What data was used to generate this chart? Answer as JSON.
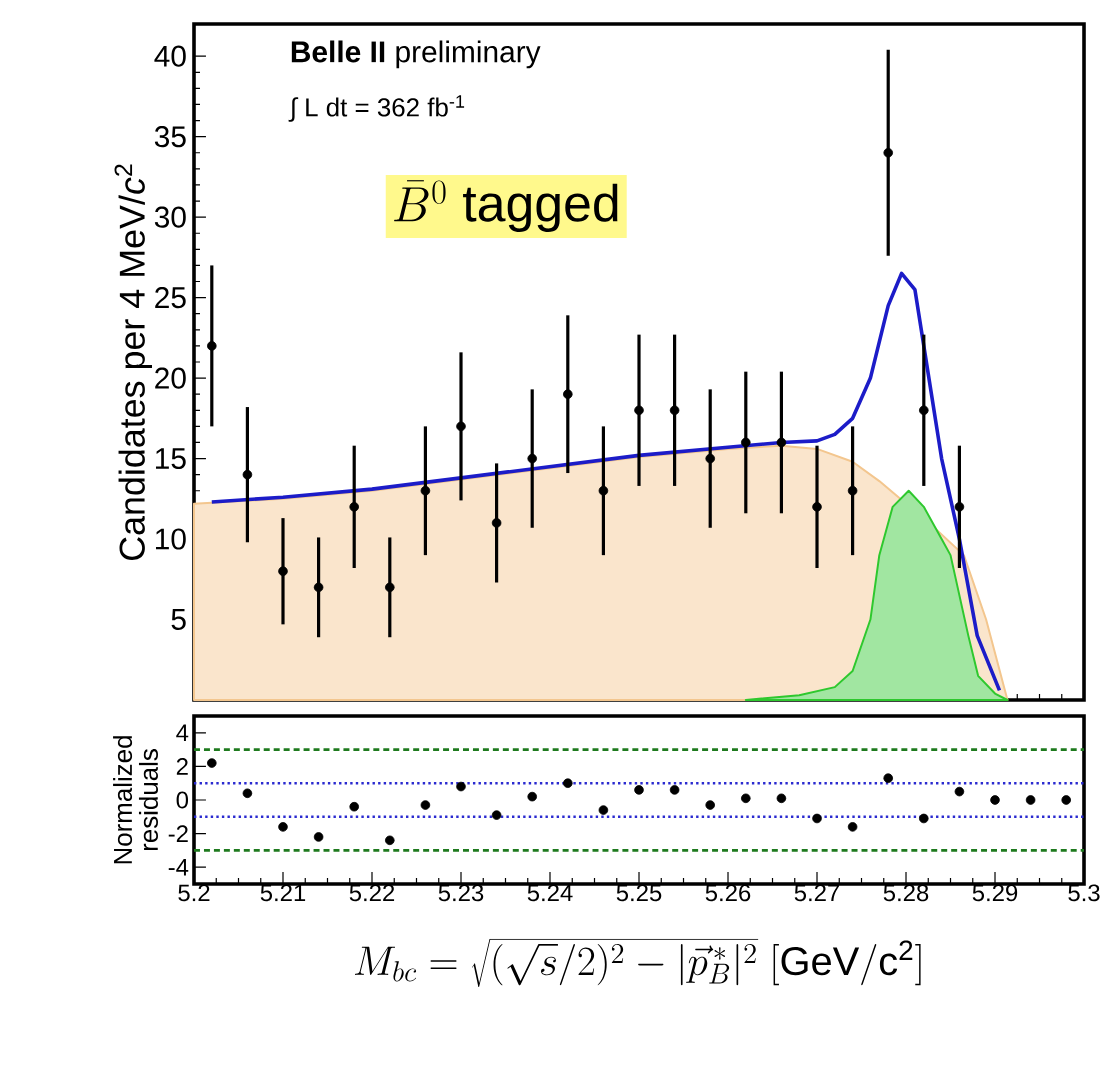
{
  "chart_data": [
    {
      "type": "line",
      "ylabel": "Candidates per 4 MeV/*c*$^{2}$",
      "xlim": [
        5.2,
        5.3
      ],
      "xticks": [
        5.2,
        5.21,
        5.22,
        5.23,
        5.24,
        5.25,
        5.26,
        5.27,
        5.28,
        5.29,
        5.3
      ],
      "ylim": [
        0,
        42
      ],
      "yticks": [
        5,
        10,
        15,
        20,
        25,
        30,
        35,
        40
      ],
      "tick_labels": "y",
      "annotations": [
        "**Belle II** preliminary",
        "∫ L dt = 362 fb$^{-1}$",
        "\\bar{B}^{0}\\ \\mathrm{tagged}"
      ],
      "series": [
        {
          "type": "area",
          "color": "#f3c68e",
          "x": [
            5.2,
            5.21,
            5.22,
            5.23,
            5.24,
            5.25,
            5.26,
            5.266,
            5.27,
            5.274,
            5.277,
            5.283,
            5.2865,
            5.289,
            5.2914
          ],
          "values": [
            12.2,
            12.5,
            13.0,
            13.7,
            14.4,
            15.1,
            15.6,
            15.8,
            15.6,
            14.8,
            13.6,
            10.8,
            9.0,
            5.0,
            0
          ]
        },
        {
          "type": "area",
          "color": "#2ec82e",
          "x": [
            5.262,
            5.268,
            5.272,
            5.274,
            5.276,
            5.277,
            5.2785,
            5.2803,
            5.282,
            5.284,
            5.285,
            5.287,
            5.2881,
            5.29,
            5.2914
          ],
          "values": [
            0,
            0.3,
            0.8,
            1.8,
            5.0,
            9.0,
            12.0,
            13.0,
            12.0,
            10.0,
            9.0,
            4.0,
            1.5,
            0.4,
            0
          ]
        },
        {
          "type": "line",
          "color": "#1c1cc8",
          "x": [
            5.202,
            5.21,
            5.22,
            5.23,
            5.24,
            5.25,
            5.26,
            5.266,
            5.27,
            5.272,
            5.274,
            5.276,
            5.278,
            5.2795,
            5.281,
            5.282,
            5.284,
            5.286,
            5.288,
            5.2905
          ],
          "values": [
            12.3,
            12.6,
            13.1,
            13.8,
            14.5,
            15.2,
            15.7,
            16.0,
            16.1,
            16.5,
            17.5,
            20.0,
            24.5,
            26.5,
            25.5,
            22.0,
            15.0,
            10.0,
            4.0,
            0.6
          ]
        },
        {
          "type": "scatter",
          "color": "#000000",
          "marker": "circle",
          "x": [
            5.202,
            5.206,
            5.21,
            5.214,
            5.218,
            5.222,
            5.226,
            5.23,
            5.234,
            5.238,
            5.242,
            5.246,
            5.25,
            5.254,
            5.258,
            5.262,
            5.266,
            5.27,
            5.274,
            5.278,
            5.282,
            5.286
          ],
          "values": [
            22,
            14,
            8,
            7,
            12,
            7,
            13,
            17,
            11,
            15,
            19,
            13,
            18,
            18,
            15,
            16,
            16,
            12,
            13,
            34,
            18,
            12
          ],
          "errors": [
            5.0,
            4.2,
            3.3,
            3.1,
            3.8,
            3.1,
            4.0,
            4.6,
            3.7,
            4.3,
            4.9,
            4.0,
            4.7,
            4.7,
            4.3,
            4.4,
            4.4,
            3.8,
            4.0,
            6.4,
            4.7,
            3.8
          ]
        }
      ]
    },
    {
      "type": "scatter",
      "ylabel": "Normalized residuals",
      "xlabel": "M_{bc} = \\sqrt{(\\sqrt{s}/2)^{2} - |\\vec{p}^{\\,*}_{B}|^{2}}\\ [\\mathrm{GeV/c^{2}}]",
      "xlim": [
        5.2,
        5.3
      ],
      "xticks": [
        5.2,
        5.21,
        5.22,
        5.23,
        5.24,
        5.25,
        5.26,
        5.27,
        5.28,
        5.29,
        5.3
      ],
      "ylim": [
        -5,
        5
      ],
      "yticks": [
        -4,
        -2,
        0,
        2,
        4
      ],
      "marker": "circle",
      "ref_lines": [
        {
          "axis": "y",
          "value": 3,
          "color": "#1e7a1e",
          "line_style": "dashed"
        },
        {
          "axis": "y",
          "value": 1,
          "color": "#2a2ad0",
          "line_style": "dotted"
        },
        {
          "axis": "y",
          "value": -1,
          "color": "#2a2ad0",
          "line_style": "dotted"
        },
        {
          "axis": "y",
          "value": -3,
          "color": "#1e7a1e",
          "line_style": "dashed"
        }
      ],
      "x": [
        5.202,
        5.206,
        5.21,
        5.214,
        5.218,
        5.222,
        5.226,
        5.23,
        5.234,
        5.238,
        5.242,
        5.246,
        5.25,
        5.254,
        5.258,
        5.262,
        5.266,
        5.27,
        5.274,
        5.278,
        5.282,
        5.286,
        5.29,
        5.294,
        5.298
      ],
      "values": [
        2.2,
        0.4,
        -1.6,
        -2.2,
        -0.4,
        -2.4,
        -0.3,
        0.8,
        -0.9,
        0.2,
        1.0,
        -0.6,
        0.6,
        0.6,
        -0.3,
        0.1,
        0.1,
        -1.1,
        -1.6,
        1.3,
        -1.1,
        0.5,
        0,
        0,
        0
      ],
      "color": "#000000"
    }
  ]
}
